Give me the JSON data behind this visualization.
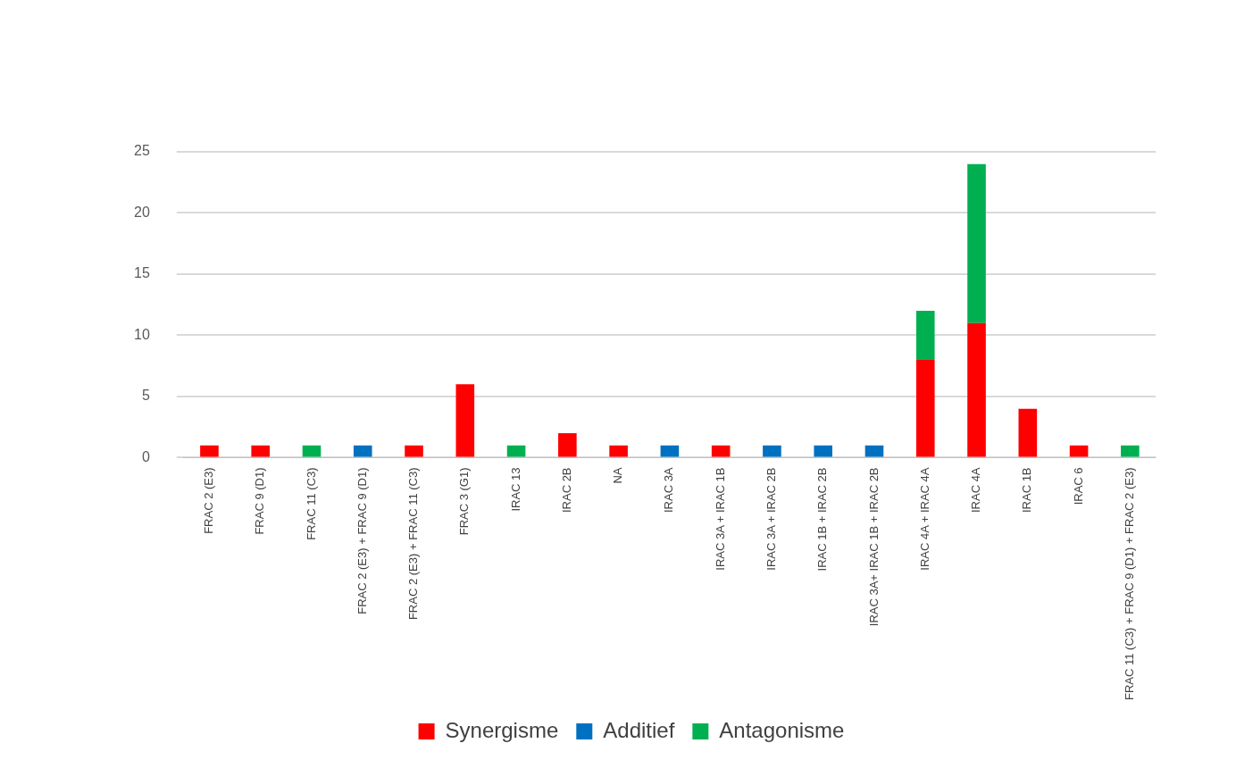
{
  "chart_data": {
    "type": "bar",
    "stacked": true,
    "categories": [
      "FRAC 2 (E3)",
      "FRAC 9 (D1)",
      "FRAC 11 (C3)",
      "FRAC 2 (E3) + FRAC 9 (D1)",
      "FRAC 2 (E3) + FRAC 11 (C3)",
      "FRAC 3 (G1)",
      "IRAC 13",
      "IRAC 2B",
      "NA",
      "IRAC 3A",
      "IRAC 3A + IRAC 1B",
      "IRAC 3A + IRAC 2B",
      "IRAC 1B + IRAC 2B",
      "IRAC 3A+ IRAC 1B + IRAC 2B",
      "IRAC 4A + IRAC 4A",
      "IRAC 4A",
      "IRAC 1B",
      "IRAC 6",
      "FRAC 11 (C3) + FRAC 9 (D1) + FRAC 2 (E3)"
    ],
    "series": [
      {
        "name": "Synergisme",
        "color": "#ff0000",
        "values": [
          1,
          1,
          null,
          null,
          1,
          6,
          null,
          2,
          1,
          null,
          1,
          null,
          null,
          null,
          8,
          11,
          4,
          1,
          null
        ]
      },
      {
        "name": "Additief",
        "color": "#0070c0",
        "values": [
          null,
          null,
          null,
          1,
          null,
          null,
          null,
          null,
          null,
          1,
          null,
          1,
          1,
          1,
          null,
          null,
          null,
          null,
          null
        ]
      },
      {
        "name": "Antagonisme",
        "color": "#00b050",
        "values": [
          null,
          null,
          1,
          null,
          null,
          null,
          1,
          null,
          null,
          null,
          null,
          null,
          null,
          null,
          4,
          13,
          null,
          null,
          1
        ]
      }
    ],
    "ylim": [
      0,
      25
    ],
    "yticks": [
      0,
      5,
      10,
      15,
      20,
      25
    ],
    "grid": "y",
    "legend": "bottom"
  }
}
